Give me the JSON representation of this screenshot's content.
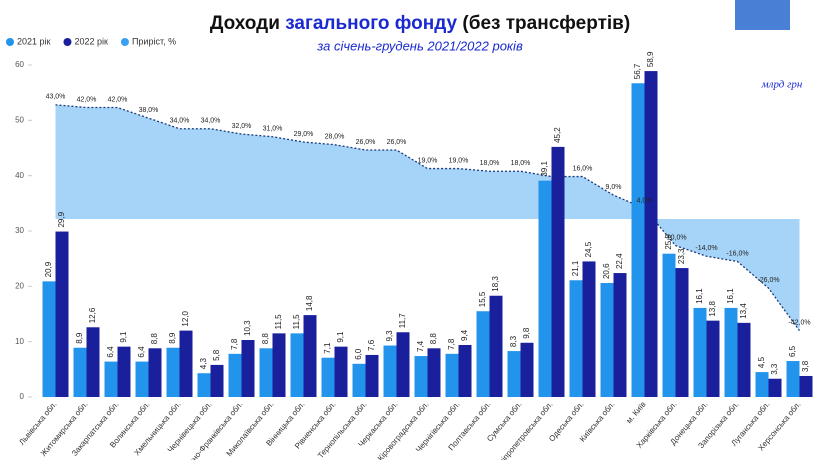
{
  "chart_data": {
    "type": "bar",
    "title_parts": [
      "Доходи ",
      "загального фонду",
      " (без трансфертів)"
    ],
    "subtitle": "за січень-грудень 2021/2022 років",
    "unit_note": "млрд грн",
    "categories": [
      "Львівська обл.",
      "Житомирська обл.",
      "Закарпатська обл.",
      "Волинська обл.",
      "Хмельницька обл.",
      "Чернівецька обл.",
      "Івано-Франківська обл.",
      "Миколаївська обл.",
      "Вінницька обл.",
      "Рівненська обл.",
      "Тернопільська обл.",
      "Черкаська обл.",
      "Кіровоградська обл.",
      "Чернігівська обл.",
      "Полтавська обл.",
      "Сумська обл.",
      "Дніпропетровська обл.",
      "Одеська обл.",
      "Київська обл.",
      "м. Київ",
      "Харківська обл.",
      "Донецька обл.",
      "Запорізька обл.",
      "Луганська обл.",
      "Херсонська обл."
    ],
    "series": [
      {
        "name": "2021 рік",
        "color": "#2394ec",
        "values": [
          20.9,
          8.9,
          6.4,
          6.4,
          8.9,
          4.3,
          7.8,
          8.8,
          11.5,
          7.1,
          6.0,
          9.3,
          7.4,
          7.8,
          15.5,
          8.3,
          39.1,
          21.1,
          20.6,
          56.7,
          25.9,
          16.1,
          16.1,
          4.5,
          6.5
        ],
        "value_labels": [
          "20,9",
          "8,9",
          "6,4",
          "6,4",
          "8,9",
          "4,3",
          "7,8",
          "8,8",
          "11,5",
          "7,1",
          "6,0",
          "9,3",
          "7,4",
          "7,8",
          "15,5",
          "8,3",
          "39,1",
          "21,1",
          "20,6",
          "56,7",
          "25,9",
          "16,1",
          "16,1",
          "4,5",
          "6,5"
        ]
      },
      {
        "name": "2022 рік",
        "color": "#1a1f9c",
        "values": [
          29.9,
          12.6,
          9.1,
          8.8,
          12.0,
          5.8,
          10.3,
          11.5,
          14.8,
          9.1,
          7.6,
          11.7,
          8.8,
          9.4,
          18.3,
          9.8,
          45.2,
          24.5,
          22.4,
          58.9,
          23.3,
          13.8,
          13.4,
          3.3,
          3.8
        ],
        "value_labels": [
          "29,9",
          "12,6",
          "9,1",
          "8,8",
          "12,0",
          "5,8",
          "10,3",
          "11,5",
          "14,8",
          "9,1",
          "7,6",
          "11,7",
          "8,8",
          "9,4",
          "18,3",
          "9,8",
          "45,2",
          "24,5",
          "22,4",
          "58,9",
          "23,3",
          "13,8",
          "13,4",
          "3,3",
          "3,8"
        ]
      },
      {
        "name": "Приріст, %",
        "color": "#3aa0f0",
        "axis": "y2",
        "type": "area",
        "values": [
          43,
          42,
          42,
          38,
          34,
          34,
          32,
          31,
          29,
          28,
          26,
          26,
          19,
          19,
          18,
          18,
          16,
          16,
          9,
          4,
          -10,
          -14,
          -16,
          -26,
          -42
        ],
        "value_labels": [
          "43,0%",
          "42,0%",
          "42,0%",
          "38,0%",
          "34,0%",
          "34,0%",
          "32,0%",
          "31,0%",
          "29,0%",
          "28,0%",
          "26,0%",
          "26,0%",
          "19,0%",
          "19,0%",
          "18,0%",
          "18,0%",
          null,
          "16,0%",
          "9,0%",
          "4,0%",
          "-10,0%",
          "-14,0%",
          "-16,0%",
          "-26,0%",
          "-42,0%"
        ]
      }
    ],
    "ylim": [
      0,
      60
    ],
    "yticks": [
      0,
      10,
      20,
      30,
      40,
      50,
      60
    ],
    "y2lim": [
      -67,
      58
    ]
  }
}
